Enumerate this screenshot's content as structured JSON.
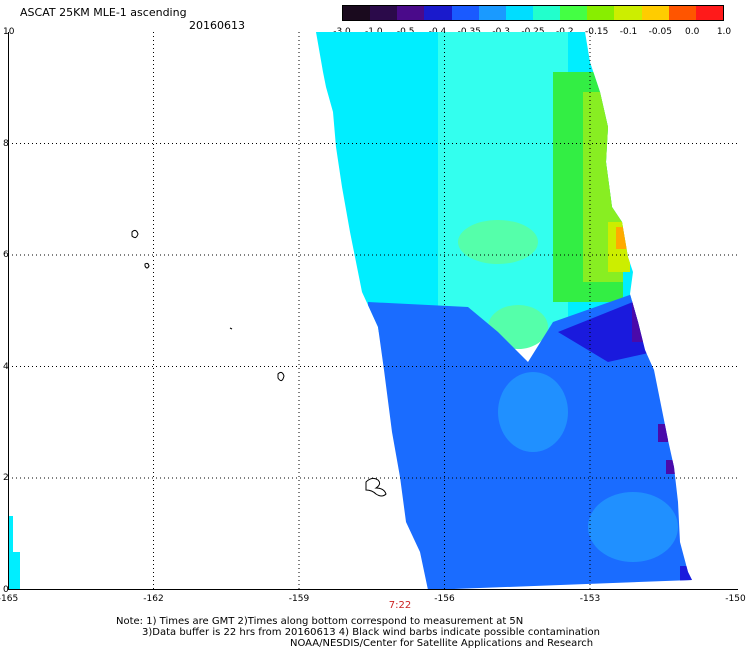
{
  "header": {
    "title": "ASCAT 25KM MLE-1 ascending",
    "date": "20160613"
  },
  "colorbar": {
    "labels": [
      "-3.0",
      "-1.0",
      "-0.5",
      "-0.4",
      "-0.35",
      "-0.3",
      "-0.25",
      "-0.2",
      "-0.15",
      "-0.1",
      "-0.05",
      "0.0",
      "1.0"
    ],
    "colors": [
      "#1a0a1e",
      "#2b0a4a",
      "#4a0a8a",
      "#1a1acc",
      "#1a5aff",
      "#1a9aff",
      "#00ddff",
      "#22ffcc",
      "#44ff44",
      "#88ee00",
      "#ccee00",
      "#ffcc00",
      "#ff5500",
      "#ff1a1a"
    ]
  },
  "axes": {
    "y_ticks": [
      "10",
      "8",
      "6",
      "4",
      "2",
      "0"
    ],
    "x_ticks": [
      "-165",
      "-162",
      "-159",
      "-156",
      "-153",
      "-150"
    ]
  },
  "time_label": "7:22",
  "notes": [
    "Note: 1) Times are GMT 2)Times along bottom correspond to measurement at 5N",
    "3)Data buffer is 22 hrs from 20160613 4) Black wind barbs indicate possible contamination",
    "NOAA/NESDIS/Center for Satellite Applications and Research"
  ],
  "map": {
    "lon_range": [
      -165,
      -150
    ],
    "lat_range": [
      0,
      10
    ],
    "field": "MLE-1 swath",
    "colors": {
      "cyan": "#00eeff",
      "light_cyan": "#33ffee",
      "green": "#33ee44",
      "yellow_green": "#aaee00",
      "orange": "#ffaa00",
      "blue": "#1a6cff",
      "mid_blue": "#2090ff",
      "dark_blue": "#1a1add",
      "purple": "#4a0aaa"
    }
  }
}
